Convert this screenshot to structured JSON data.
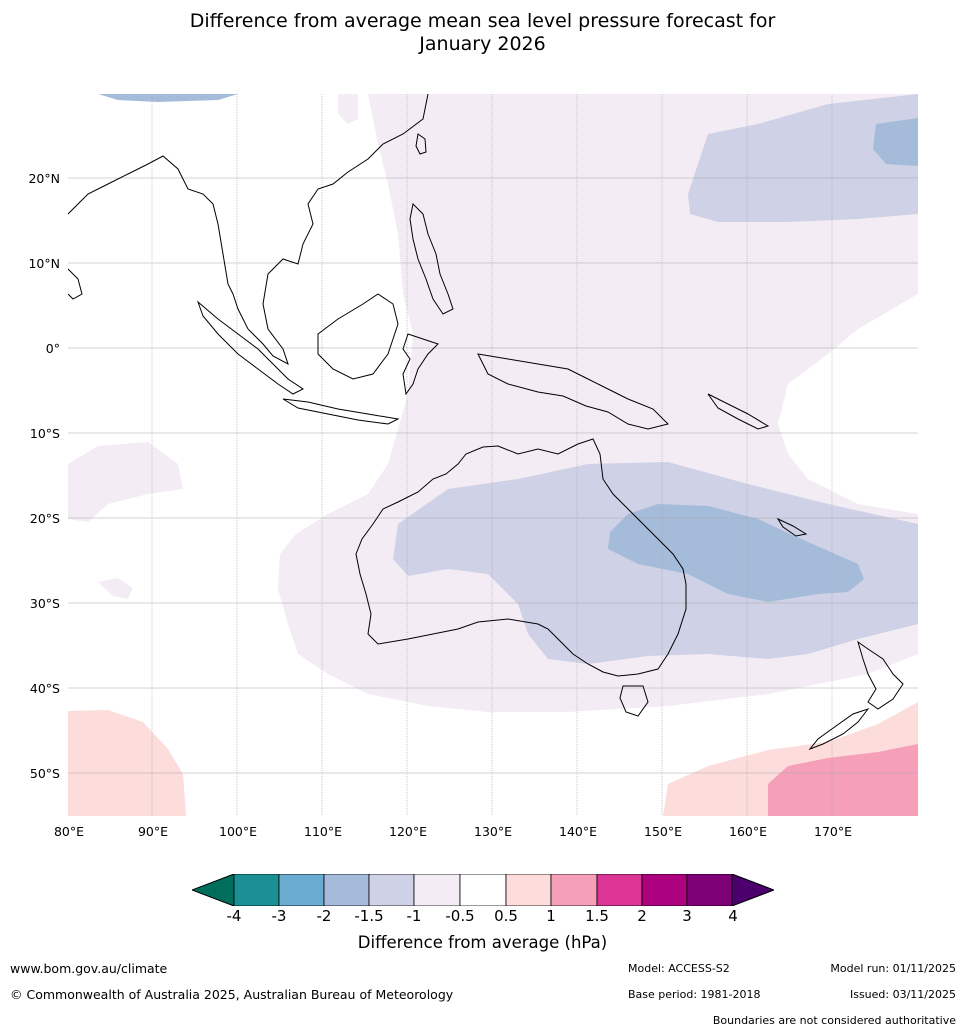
{
  "title_line1": "Difference from average mean sea level pressure forecast for",
  "title_line2": "January 2026",
  "lat_labels": [
    "20°N",
    "10°N",
    "0°",
    "10°S",
    "20°S",
    "30°S",
    "40°S",
    "50°S"
  ],
  "lon_labels": [
    "80°E",
    "90°E",
    "100°E",
    "110°E",
    "120°E",
    "130°E",
    "140°E",
    "150°E",
    "160°E",
    "170°E"
  ],
  "colorbar": {
    "label": "Difference from average (hPa)",
    "ticks": [
      "-4",
      "-3",
      "-2",
      "-1.5",
      "-1",
      "-0.5",
      "0.5",
      "1",
      "1.5",
      "2",
      "3",
      "4"
    ],
    "colors": {
      "below_-4": "#006e5b",
      "-4_to_-3": "#1c8f94",
      "-3_to_-2": "#6aabd1",
      "-2_to_-1.5": "#a5bbda",
      "-1.5_to_-1": "#cfd1e6",
      "-1_to_-0.5": "#f3ecf5",
      "-0.5_to_0.5": "#ffffff",
      "0.5_to_1": "#fddcdc",
      "1_to_1.5": "#f59fb9",
      "1.5_to_2": "#dc3596",
      "2_to_3": "#ad0280",
      "3_to_4": "#7e0178",
      "above_4": "#4b006e"
    }
  },
  "footer": {
    "website": "www.bom.gov.au/climate",
    "copyright": "© Commonwealth of Australia 2025, Australian Bureau of Meteorology",
    "model": "Model: ACCESS-S2",
    "base_period": "Base period: 1981-2018",
    "model_run": "Model run: 01/11/2025",
    "issued": "Issued: 03/11/2025",
    "disclaimer": "Boundaries are not considered authoritative"
  }
}
